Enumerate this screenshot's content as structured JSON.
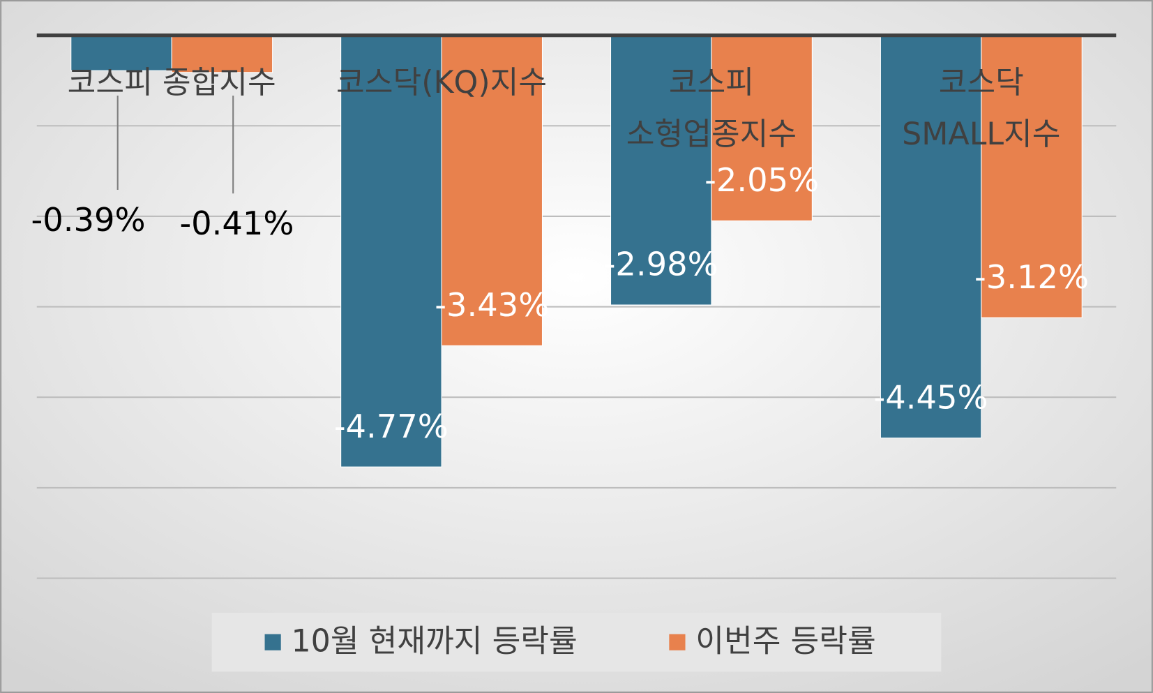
{
  "chart_data": {
    "type": "bar",
    "categories": [
      "코스피 종합지수",
      "코스닥(KQ)지수",
      "코스피\n소형업종지수",
      "코스닥\nSMALL지수"
    ],
    "series": [
      {
        "name": "10월 현재까지 등락률",
        "color": "#35728f",
        "values": [
          -0.39,
          -4.77,
          -2.98,
          -4.45
        ],
        "value_labels": [
          "-0.39%",
          "-4.77%",
          "-2.98%",
          "-4.45%"
        ]
      },
      {
        "name": "이번주 등락률",
        "color": "#e8814d",
        "values": [
          -0.41,
          -3.43,
          -2.05,
          -3.12
        ],
        "value_labels": [
          "-0.41%",
          "-3.43%",
          "-2.05%",
          "-3.12%"
        ]
      }
    ],
    "ylim": [
      -6,
      0
    ],
    "yticks": [
      0,
      -1,
      -2,
      -3,
      -4,
      -5,
      -6
    ],
    "grid": true,
    "legend": "bottom"
  }
}
